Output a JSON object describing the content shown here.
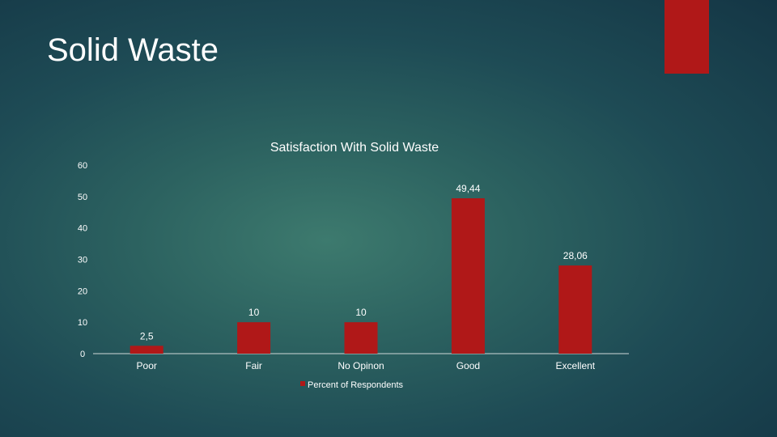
{
  "slide": {
    "title": "Solid Waste",
    "accent_color": "#b01818"
  },
  "chart_data": {
    "type": "bar",
    "title": "Satisfaction With Solid Waste",
    "categories": [
      "Poor",
      "Fair",
      "No Opinon",
      "Good",
      "Excellent"
    ],
    "series": [
      {
        "name": "Percent of Respondents",
        "values": [
          2.5,
          10,
          10,
          49.44,
          28.06
        ],
        "labels": [
          "2,5",
          "10",
          "10",
          "49,44",
          "28,06"
        ],
        "color": "#b01818"
      }
    ],
    "ylim": [
      0,
      60
    ],
    "yticks": [
      0,
      10,
      20,
      30,
      40,
      50,
      60
    ],
    "xlabel": "",
    "ylabel": "",
    "grid": false,
    "legend_position": "bottom"
  }
}
